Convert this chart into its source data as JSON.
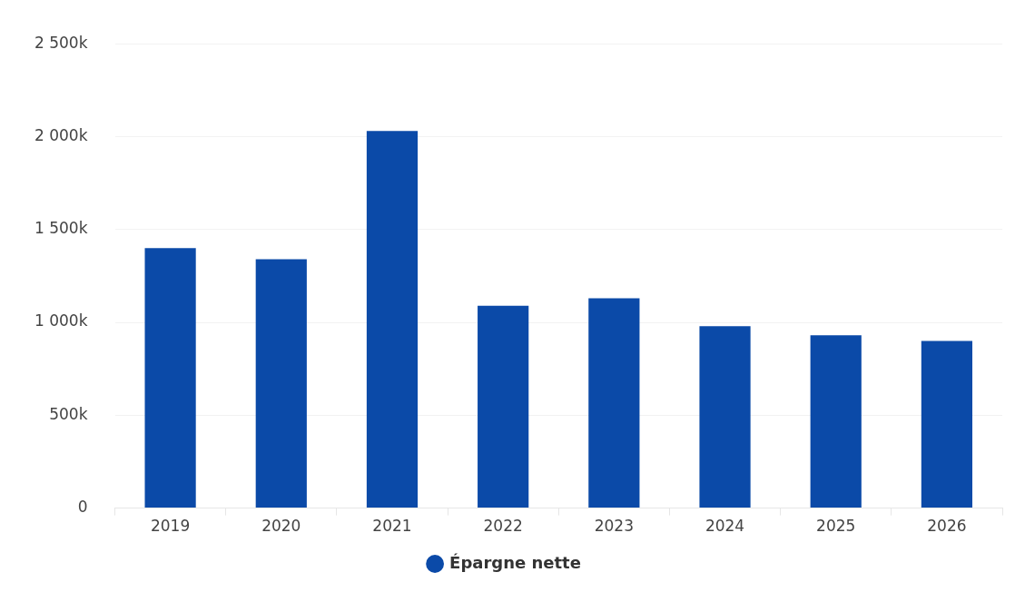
{
  "chart_data": {
    "type": "bar",
    "categories": [
      "2019",
      "2020",
      "2021",
      "2022",
      "2023",
      "2024",
      "2025",
      "2026"
    ],
    "series": [
      {
        "name": "Épargne nette",
        "color": "#0b4aa8",
        "values": [
          1400000,
          1340000,
          2030000,
          1090000,
          1130000,
          980000,
          930000,
          900000
        ]
      }
    ],
    "ylim": [
      0,
      2500000
    ],
    "yticks": [
      {
        "value": 0,
        "label": "0"
      },
      {
        "value": 500000,
        "label": "500k"
      },
      {
        "value": 1000000,
        "label": "1 000k"
      },
      {
        "value": 1500000,
        "label": "1 500k"
      },
      {
        "value": 2000000,
        "label": "2 000k"
      },
      {
        "value": 2500000,
        "label": "2 500k"
      }
    ],
    "grid": "y",
    "legend": "bottom"
  }
}
